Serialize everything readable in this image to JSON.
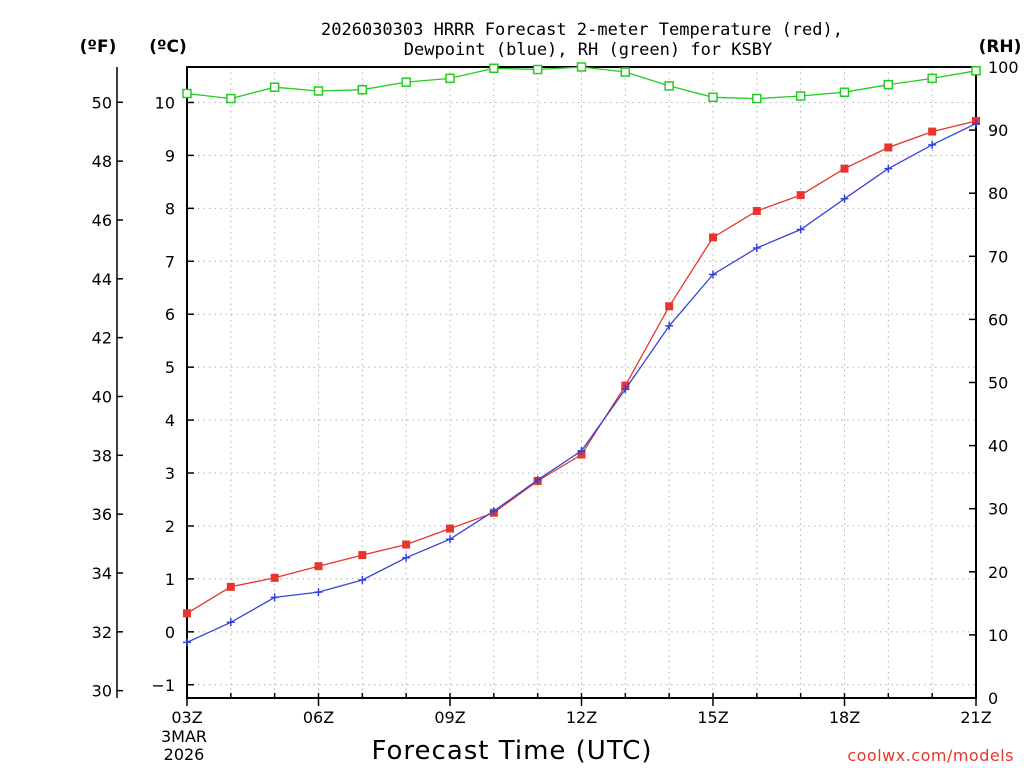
{
  "title_line1": "2026030303 HRRR Forecast 2-meter Temperature (red),",
  "title_line2": "Dewpoint (blue), RH (green) for KSBY",
  "footer": {
    "credit": "coolwx.com/models"
  },
  "colors": {
    "temperature": "#e8352e",
    "dewpoint": "#3344dd",
    "rh": "#22cc22",
    "grid": "#b0b0b0"
  },
  "chart_data": {
    "type": "line",
    "title": "2026030303 HRRR Forecast 2-meter Temperature (red), Dewpoint (blue), RH (green) for KSBY",
    "xlabel": "Forecast Time (UTC)",
    "x_hours": [
      3,
      4,
      5,
      6,
      7,
      8,
      9,
      10,
      11,
      12,
      13,
      14,
      15,
      16,
      17,
      18,
      19,
      20,
      21
    ],
    "x_ticks": [
      {
        "hour": 3,
        "label": "03Z"
      },
      {
        "hour": 6,
        "label": "06Z"
      },
      {
        "hour": 9,
        "label": "09Z"
      },
      {
        "hour": 12,
        "label": "12Z"
      },
      {
        "hour": 15,
        "label": "15Z"
      },
      {
        "hour": 18,
        "label": "18Z"
      },
      {
        "hour": 21,
        "label": "21Z"
      }
    ],
    "start_date_lines": [
      "3MAR",
      "2026"
    ],
    "x_range": [
      3,
      21
    ],
    "axes": {
      "fahrenheit": {
        "label": "(ºF)",
        "range": [
          29.75,
          51.2
        ],
        "ticks": [
          30,
          32,
          34,
          36,
          38,
          40,
          42,
          44,
          46,
          48,
          50
        ]
      },
      "celsius": {
        "label": "(ºC)",
        "range": [
          -1.25,
          10.67
        ],
        "ticks": [
          -1,
          0,
          1,
          2,
          3,
          4,
          5,
          6,
          7,
          8,
          9,
          10
        ]
      },
      "rh": {
        "label": "(RH)",
        "range": [
          0,
          100
        ],
        "ticks": [
          0,
          10,
          20,
          30,
          40,
          50,
          60,
          70,
          80,
          90,
          100
        ]
      }
    },
    "grid": true,
    "series": [
      {
        "name": "Temperature",
        "color": "#e8352e",
        "units": "°C",
        "marker": "square",
        "values": [
          0.35,
          0.85,
          1.02,
          1.24,
          1.45,
          1.65,
          1.95,
          2.25,
          2.85,
          3.35,
          4.65,
          6.15,
          7.45,
          7.95,
          8.25,
          8.75,
          9.15,
          9.45,
          9.65
        ]
      },
      {
        "name": "Dewpoint",
        "color": "#3344dd",
        "units": "°C",
        "marker": "plus",
        "values": [
          -0.2,
          0.18,
          0.65,
          0.75,
          0.98,
          1.4,
          1.75,
          2.28,
          2.87,
          3.42,
          4.58,
          5.78,
          6.75,
          7.25,
          7.6,
          8.18,
          8.75,
          9.2,
          9.6
        ]
      },
      {
        "name": "RH",
        "color": "#22cc22",
        "units": "%",
        "marker": "open-square",
        "values": [
          95.8,
          95.0,
          96.8,
          96.2,
          96.4,
          97.6,
          98.2,
          99.8,
          99.6,
          100,
          99.2,
          97.0,
          95.2,
          95.0,
          95.4,
          96.0,
          97.2,
          98.2,
          99.4
        ]
      }
    ]
  }
}
